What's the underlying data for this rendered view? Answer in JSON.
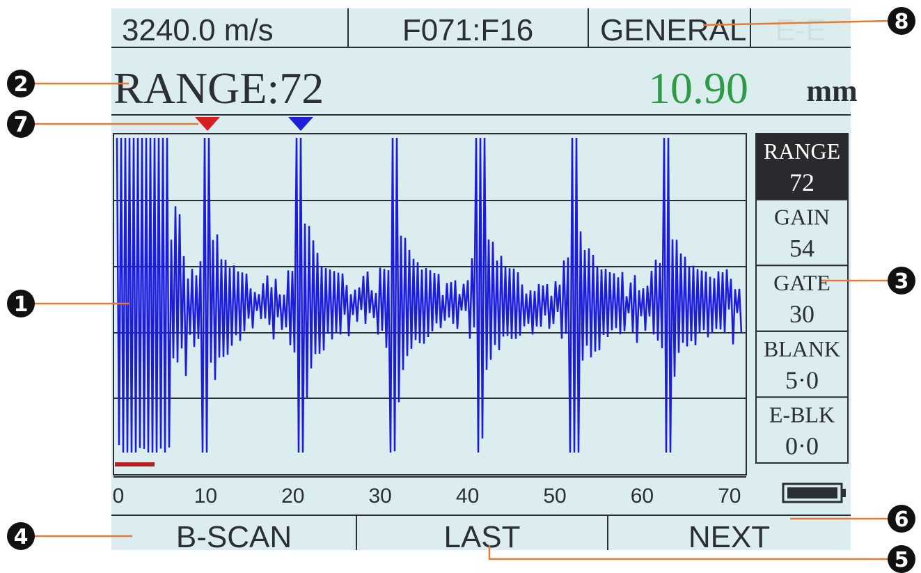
{
  "status_bar": {
    "velocity": "3240.0 m/s",
    "file": "F071:F16",
    "mode": "GENERAL",
    "echo_mode": "E-E"
  },
  "header": {
    "range_label": "RANGE:72",
    "thickness": "10.90",
    "unit": "mm"
  },
  "side_menu": [
    {
      "label": "RANGE",
      "value": "72"
    },
    {
      "label": "GAIN",
      "value": "54"
    },
    {
      "label": "GATE",
      "value": "30"
    },
    {
      "label": "BLANK",
      "value": "5·0"
    },
    {
      "label": "E-BLK",
      "value": "0·0"
    }
  ],
  "axis_ticks": [
    0,
    10,
    20,
    30,
    40,
    50,
    60,
    70
  ],
  "buttons": [
    "B-SCAN",
    "LAST",
    "NEXT"
  ],
  "callouts": [
    "1",
    "2",
    "3",
    "4",
    "5",
    "6",
    "7",
    "8"
  ]
}
